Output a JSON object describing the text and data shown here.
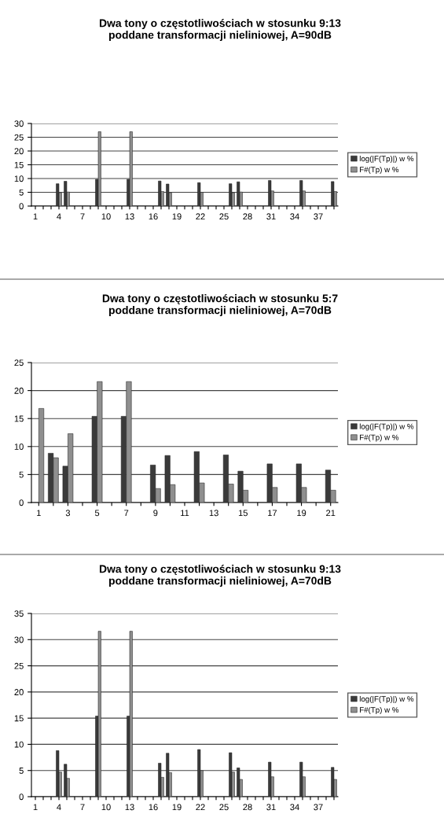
{
  "chart_data": [
    {
      "type": "bar",
      "title": "Dwa tony o częstotliwościach w stosunku 9:13\npoddane transformacji nieliniowej, A=90dB",
      "categories": [
        "1",
        null,
        null,
        "4",
        null,
        null,
        "7",
        null,
        null,
        "10",
        null,
        null,
        "13",
        null,
        null,
        "16",
        null,
        null,
        "19",
        null,
        null,
        "22",
        null,
        null,
        "25",
        null,
        null,
        "28",
        null,
        null,
        "31",
        null,
        null,
        "34",
        null,
        null,
        "37",
        null,
        null
      ],
      "series": [
        {
          "name": "log(|F(Tp)|) w %",
          "color": "#3a3a3a",
          "values": [
            null,
            null,
            null,
            8.1,
            9.0,
            null,
            null,
            null,
            9.7,
            null,
            null,
            null,
            9.7,
            null,
            null,
            null,
            9.1,
            8.0,
            null,
            null,
            null,
            8.5,
            null,
            null,
            null,
            8.1,
            8.8,
            null,
            null,
            null,
            9.3,
            null,
            null,
            null,
            9.3,
            null,
            null,
            null,
            8.9
          ]
        },
        {
          "name": "F#(Tp) w %",
          "color": "#8f8f8f",
          "values": [
            null,
            null,
            null,
            4.8,
            5.1,
            null,
            null,
            null,
            27,
            null,
            null,
            null,
            27,
            null,
            null,
            null,
            5.3,
            4.8,
            null,
            null,
            null,
            5.0,
            null,
            null,
            null,
            4.8,
            5.1,
            null,
            null,
            null,
            5.5,
            null,
            null,
            null,
            5.5,
            null,
            null,
            null,
            5.3
          ]
        }
      ],
      "ylim": [
        0,
        30
      ],
      "yticks": [
        0,
        5,
        10,
        15,
        20,
        25,
        30
      ],
      "grid": "y",
      "legend": "right"
    },
    {
      "type": "bar",
      "title": "Dwa tony o częstotliwościach w stosunku 5:7\npoddane transformacji nieliniowej, A=70dB",
      "categories": [
        "1",
        null,
        "3",
        null,
        "5",
        null,
        "7",
        null,
        "9",
        null,
        "11",
        null,
        "13",
        null,
        "15",
        null,
        "17",
        null,
        "19",
        null,
        "21"
      ],
      "series": [
        {
          "name": "log(|F(Tp)|) w %",
          "color": "#3a3a3a",
          "values": [
            null,
            8.8,
            6.5,
            null,
            15.4,
            null,
            15.4,
            null,
            6.7,
            8.4,
            null,
            9.1,
            null,
            8.5,
            5.6,
            null,
            6.9,
            null,
            6.9,
            null,
            5.8
          ]
        },
        {
          "name": "F#(Tp) w %",
          "color": "#8f8f8f",
          "values": [
            16.8,
            8.0,
            12.3,
            null,
            21.6,
            null,
            21.6,
            null,
            2.5,
            3.2,
            null,
            3.5,
            null,
            3.3,
            2.2,
            null,
            2.7,
            null,
            2.7,
            null,
            2.2
          ]
        }
      ],
      "ylim": [
        0,
        25
      ],
      "yticks": [
        0,
        5,
        10,
        15,
        20,
        25
      ],
      "grid": "y",
      "legend": "right"
    },
    {
      "type": "bar",
      "title": "Dwa tony o częstotliwościach w stosunku 9:13\npoddane transformacji nieliniowej, A=70dB",
      "categories": [
        "1",
        null,
        null,
        "4",
        null,
        null,
        "7",
        null,
        null,
        "10",
        null,
        null,
        "13",
        null,
        null,
        "16",
        null,
        null,
        "19",
        null,
        null,
        "22",
        null,
        null,
        "25",
        null,
        null,
        "28",
        null,
        null,
        "31",
        null,
        null,
        "34",
        null,
        null,
        "37",
        null,
        null
      ],
      "series": [
        {
          "name": "log(|F(Tp)|) w %",
          "color": "#3a3a3a",
          "values": [
            null,
            null,
            null,
            8.8,
            6.2,
            null,
            null,
            null,
            15.4,
            null,
            null,
            null,
            15.4,
            null,
            null,
            null,
            6.4,
            8.3,
            null,
            null,
            null,
            9.0,
            null,
            null,
            null,
            8.4,
            5.5,
            null,
            null,
            null,
            6.6,
            null,
            null,
            null,
            6.6,
            null,
            null,
            null,
            5.6
          ]
        },
        {
          "name": "F#(Tp) w %",
          "color": "#8f8f8f",
          "values": [
            null,
            null,
            null,
            4.7,
            3.5,
            null,
            null,
            null,
            31.6,
            null,
            null,
            null,
            31.6,
            null,
            null,
            null,
            3.7,
            4.6,
            null,
            null,
            null,
            5.0,
            null,
            null,
            null,
            4.7,
            3.3,
            null,
            null,
            null,
            3.8,
            null,
            null,
            null,
            3.8,
            null,
            null,
            null,
            3.3
          ]
        }
      ],
      "ylim": [
        0,
        35
      ],
      "yticks": [
        0,
        5,
        10,
        15,
        20,
        25,
        30,
        35
      ],
      "grid": "y",
      "legend": "right"
    }
  ]
}
